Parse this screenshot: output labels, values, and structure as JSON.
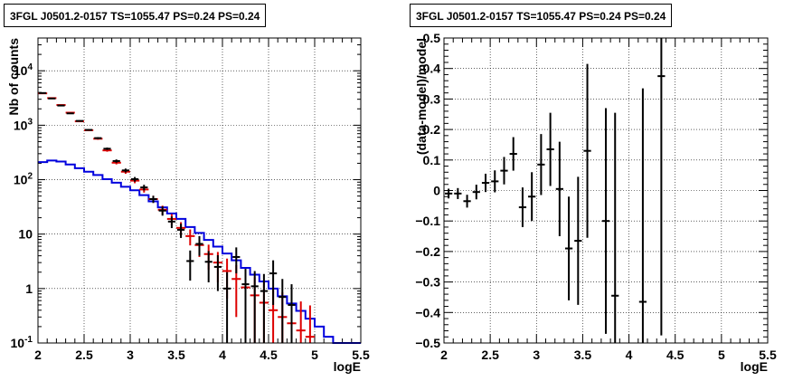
{
  "chart_data": [
    {
      "type": "line",
      "title": "3FGL J0501.2-0157 TS=1055.47 PS=0.24 PS=0.24",
      "xlabel": "logE",
      "ylabel": "Nb of counts",
      "xlim": [
        2,
        5.5
      ],
      "ylim": [
        0.1,
        40000
      ],
      "yscale": "log",
      "grid": true,
      "x_ticks": [
        "2",
        "2.5",
        "3",
        "3.5",
        "4",
        "4.5",
        "5",
        "5.5"
      ],
      "y_ticks": [
        {
          "v": 0.1,
          "label": "10^-1"
        },
        {
          "v": 1,
          "label": "1"
        },
        {
          "v": 10,
          "label": "10"
        },
        {
          "v": 100,
          "label": "10^2"
        },
        {
          "v": 1000,
          "label": "10^3"
        },
        {
          "v": 10000,
          "label": "10^4"
        }
      ],
      "colors": {
        "data": "#000000",
        "model_total": "#dd0000",
        "source": "#0000dd"
      },
      "bin_edges": [
        2.0,
        2.1,
        2.2,
        2.3,
        2.4,
        2.5,
        2.6,
        2.7,
        2.8,
        2.9,
        3.0,
        3.1,
        3.2,
        3.3,
        3.4,
        3.5,
        3.6,
        3.7,
        3.8,
        3.9,
        4.0,
        4.1,
        4.2,
        4.3,
        4.4,
        4.5,
        4.6,
        4.7,
        4.8,
        4.9,
        5.0,
        5.1,
        5.2,
        5.3,
        5.4,
        5.5
      ],
      "series": [
        {
          "values": [
            3900,
            3100,
            2300,
            1650,
            1200,
            820,
            580,
            370,
            220,
            148,
            102,
            72,
            44,
            27,
            17,
            12,
            3.2,
            6.6,
            3.1,
            2.5,
            1.0,
            3.8,
            1.2,
            1.1,
            0.9,
            1.9,
            0.7,
            0.5,
            0,
            0,
            0,
            0,
            0,
            0,
            0
          ],
          "errors": [
            62,
            56,
            48,
            41,
            35,
            29,
            24,
            19,
            15,
            12,
            10,
            8.5,
            6.6,
            5.2,
            4.1,
            3.5,
            1.8,
            2.6,
            1.8,
            1.6,
            1.0,
            1.9,
            1.1,
            1.0,
            0.95,
            1.4,
            0.8,
            0.7,
            0,
            0,
            0,
            0,
            0,
            0,
            0
          ]
        },
        {
          "values": [
            3850,
            3150,
            2350,
            1700,
            1180,
            810,
            565,
            345,
            205,
            140,
            96,
            66,
            44,
            28,
            19,
            13,
            9.2,
            6.3,
            4.3,
            3.0,
            2.1,
            1.5,
            1.05,
            0.75,
            0.55,
            0.4,
            0.3,
            0.23,
            0.17,
            0.13,
            0,
            0,
            0,
            0,
            0
          ],
          "errors": [
            62,
            56,
            48,
            41,
            34,
            28,
            24,
            19,
            14,
            12,
            10,
            8.1,
            6.6,
            5.3,
            4.4,
            3.6,
            3.0,
            2.5,
            2.1,
            1.7,
            1.45,
            1.2,
            1.0,
            0.87,
            0.74,
            0.63,
            0.55,
            0.48,
            0.41,
            0.36,
            0,
            0,
            0,
            0,
            0
          ]
        },
        {
          "values": [
            210,
            225,
            215,
            190,
            162,
            140,
            122,
            102,
            88,
            74,
            64,
            52,
            40,
            31,
            24,
            19,
            13.5,
            10.5,
            7.8,
            5.9,
            4.4,
            3.3,
            2.4,
            1.8,
            1.35,
            1.0,
            0.72,
            0.53,
            0.39,
            0.28,
            0.2,
            0.13,
            0.1,
            0.1,
            0.1
          ]
        }
      ]
    },
    {
      "type": "scatter",
      "title": "3FGL J0501.2-0157 TS=1055.47 PS=0.24 PS=0.24",
      "xlabel": "logE",
      "ylabel": "(data-model)/model",
      "xlim": [
        2,
        5.5
      ],
      "ylim": [
        -0.5,
        0.5
      ],
      "grid": true,
      "x_ticks": [
        "2",
        "2.5",
        "3",
        "3.5",
        "4",
        "4.5",
        "5",
        "5.5"
      ],
      "y_ticks": [
        "−0.5",
        "−0.4",
        "−0.3",
        "−0.2",
        "−0.1",
        "0",
        "0.1",
        "0.2",
        "0.3",
        "0.4",
        "0.5"
      ],
      "bin_half_width": 0.05,
      "x": [
        2.05,
        2.15,
        2.25,
        2.35,
        2.45,
        2.55,
        2.65,
        2.75,
        2.85,
        2.95,
        3.05,
        3.15,
        3.25,
        3.35,
        3.45,
        3.55,
        3.75,
        3.85,
        4.15,
        4.35
      ],
      "y": [
        -0.01,
        -0.01,
        -0.035,
        -0.005,
        0.025,
        0.03,
        0.065,
        0.12,
        -0.055,
        -0.02,
        0.085,
        0.135,
        0.005,
        -0.19,
        -0.165,
        0.13,
        -0.1,
        -0.345,
        -0.365,
        0.375
      ],
      "yerr": [
        0.016,
        0.018,
        0.021,
        0.024,
        0.03,
        0.036,
        0.045,
        0.055,
        0.065,
        0.08,
        0.1,
        0.12,
        0.155,
        0.17,
        0.21,
        0.285,
        0.37,
        0.6,
        0.7,
        0.85
      ]
    }
  ]
}
